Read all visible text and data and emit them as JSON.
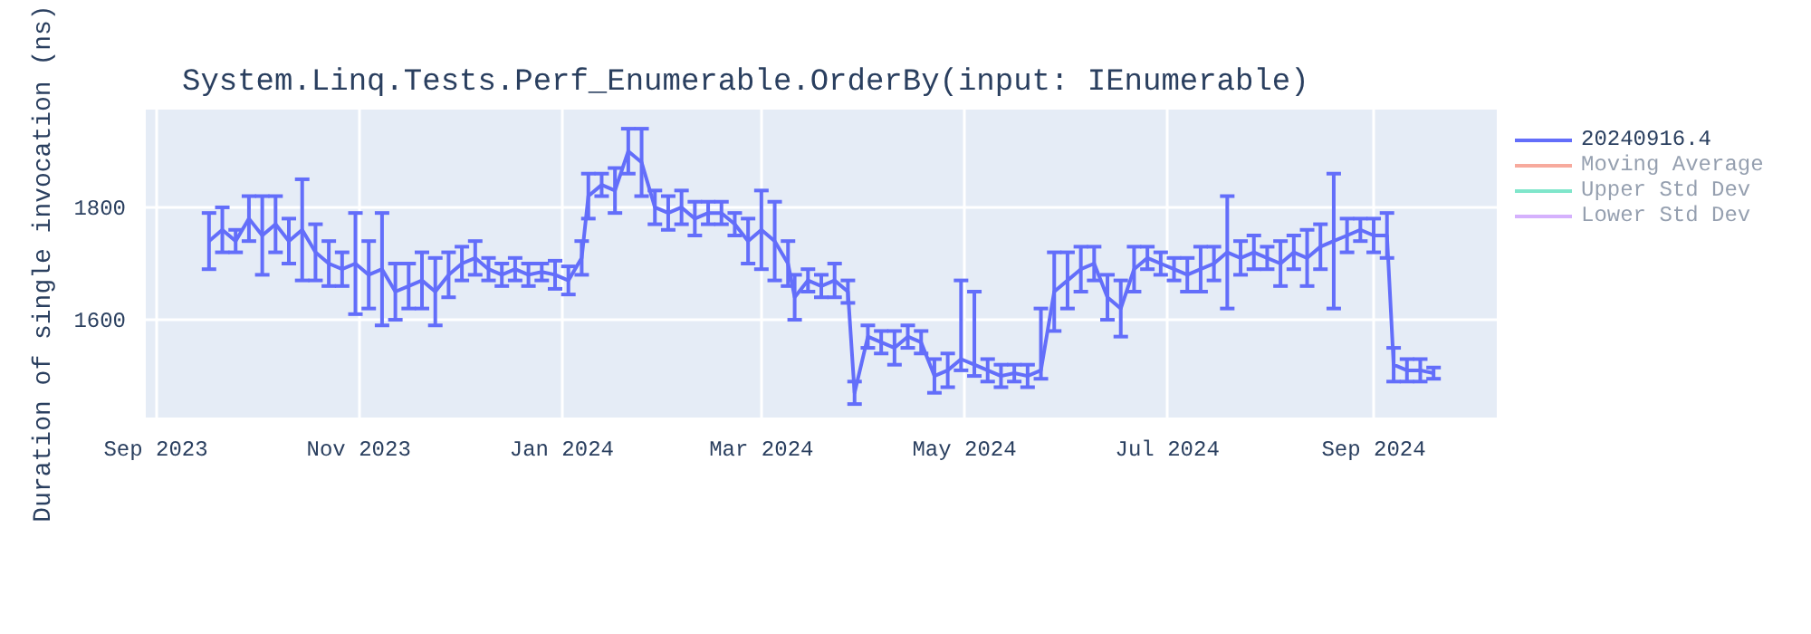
{
  "chart_data": {
    "type": "line",
    "title": "System.Linq.Tests.Perf_Enumerable.OrderBy(input: IEnumerable)",
    "ylabel": "Duration of single invocation (ns)",
    "x": [
      "2023-09-17",
      "2023-09-21",
      "2023-09-25",
      "2023-09-29",
      "2023-10-03",
      "2023-10-07",
      "2023-10-11",
      "2023-10-15",
      "2023-10-19",
      "2023-10-23",
      "2023-10-27",
      "2023-10-31",
      "2023-11-04",
      "2023-11-08",
      "2023-11-12",
      "2023-11-16",
      "2023-11-20",
      "2023-11-24",
      "2023-11-28",
      "2023-12-02",
      "2023-12-06",
      "2023-12-10",
      "2023-12-14",
      "2023-12-18",
      "2023-12-22",
      "2023-12-26",
      "2023-12-30",
      "2024-01-03",
      "2024-01-07",
      "2024-01-09",
      "2024-01-13",
      "2024-01-17",
      "2024-01-21",
      "2024-01-25",
      "2024-01-29",
      "2024-02-02",
      "2024-02-06",
      "2024-02-10",
      "2024-02-14",
      "2024-02-18",
      "2024-02-22",
      "2024-02-26",
      "2024-03-01",
      "2024-03-05",
      "2024-03-09",
      "2024-03-11",
      "2024-03-15",
      "2024-03-19",
      "2024-03-23",
      "2024-03-27",
      "2024-03-29",
      "2024-04-02",
      "2024-04-06",
      "2024-04-10",
      "2024-04-14",
      "2024-04-18",
      "2024-04-22",
      "2024-04-26",
      "2024-04-30",
      "2024-05-04",
      "2024-05-08",
      "2024-05-12",
      "2024-05-16",
      "2024-05-20",
      "2024-05-24",
      "2024-05-28",
      "2024-06-01",
      "2024-06-05",
      "2024-06-09",
      "2024-06-13",
      "2024-06-17",
      "2024-06-21",
      "2024-06-25",
      "2024-06-29",
      "2024-07-03",
      "2024-07-07",
      "2024-07-11",
      "2024-07-15",
      "2024-07-19",
      "2024-07-23",
      "2024-07-27",
      "2024-07-31",
      "2024-08-04",
      "2024-08-08",
      "2024-08-12",
      "2024-08-16",
      "2024-08-20",
      "2024-08-24",
      "2024-08-28",
      "2024-09-01",
      "2024-09-05",
      "2024-09-07",
      "2024-09-11",
      "2024-09-15",
      "2024-09-19"
    ],
    "series": [
      {
        "name": "20240916.4",
        "color": "#636efa",
        "values": [
          1740,
          1760,
          1740,
          1780,
          1750,
          1770,
          1740,
          1760,
          1720,
          1700,
          1690,
          1700,
          1680,
          1690,
          1650,
          1660,
          1670,
          1650,
          1680,
          1700,
          1710,
          1690,
          1680,
          1690,
          1680,
          1685,
          1680,
          1670,
          1710,
          1820,
          1840,
          1830,
          1900,
          1880,
          1800,
          1790,
          1800,
          1780,
          1790,
          1790,
          1770,
          1740,
          1760,
          1740,
          1700,
          1640,
          1670,
          1660,
          1670,
          1650,
          1470,
          1570,
          1560,
          1550,
          1570,
          1560,
          1500,
          1510,
          1530,
          1520,
          1510,
          1500,
          1505,
          1500,
          1510,
          1650,
          1670,
          1690,
          1700,
          1640,
          1620,
          1690,
          1710,
          1700,
          1690,
          1680,
          1690,
          1700,
          1720,
          1710,
          1720,
          1710,
          1700,
          1720,
          1710,
          1730,
          1740,
          1750,
          1760,
          1750,
          1750,
          1520,
          1510,
          1510,
          1505
        ],
        "errors": [
          50,
          40,
          20,
          40,
          70,
          50,
          40,
          90,
          50,
          40,
          30,
          90,
          60,
          100,
          50,
          40,
          50,
          60,
          40,
          30,
          30,
          20,
          20,
          20,
          20,
          15,
          25,
          25,
          30,
          40,
          20,
          40,
          40,
          60,
          30,
          30,
          30,
          30,
          20,
          20,
          20,
          40,
          70,
          70,
          40,
          40,
          20,
          20,
          30,
          20,
          20,
          20,
          20,
          30,
          20,
          20,
          30,
          30,
          [
            1510,
            1670
          ],
          [
            1500,
            1650
          ],
          20,
          20,
          15,
          20,
          [
            1495,
            1620
          ],
          70,
          50,
          40,
          30,
          40,
          50,
          40,
          20,
          20,
          20,
          30,
          40,
          30,
          100,
          30,
          30,
          20,
          40,
          30,
          50,
          40,
          120,
          30,
          20,
          30,
          40,
          30,
          20,
          20,
          10
        ]
      },
      {
        "name": "Moving Average",
        "color": "#ef553b",
        "values": [
          null,
          null,
          null,
          null,
          null,
          null,
          null,
          null,
          null,
          null,
          null,
          null,
          null,
          null,
          null,
          null,
          null,
          null,
          null,
          null,
          null,
          null,
          null,
          null,
          null,
          null,
          null,
          null,
          null,
          null,
          null,
          null,
          null,
          null,
          null,
          null,
          null,
          null,
          null,
          null,
          null,
          null,
          null,
          null,
          null,
          null,
          null,
          null,
          null,
          null,
          null,
          null,
          null,
          null,
          null,
          null,
          null,
          null,
          null,
          null,
          null,
          null,
          null,
          null,
          null,
          null,
          null,
          null,
          null,
          null,
          null,
          null,
          null,
          null,
          null,
          null,
          null,
          null,
          null,
          null,
          null,
          null,
          null,
          null,
          null,
          null,
          null,
          null,
          null,
          null,
          null,
          null,
          null,
          null,
          null
        ]
      },
      {
        "name": "Upper Std Dev",
        "color": "#00cc96",
        "values": [
          null,
          null,
          null,
          null,
          null,
          null,
          null,
          null,
          null,
          null,
          null,
          null,
          null,
          null,
          null,
          null,
          null,
          null,
          null,
          null,
          null,
          null,
          null,
          null,
          null,
          null,
          null,
          null,
          null,
          null,
          null,
          null,
          null,
          null,
          null,
          null,
          null,
          null,
          null,
          null,
          null,
          null,
          null,
          null,
          null,
          null,
          null,
          null,
          null,
          null,
          null,
          null,
          null,
          null,
          null,
          null,
          null,
          null,
          null,
          null,
          null,
          null,
          null,
          null,
          null,
          null,
          null,
          null,
          null,
          null,
          null,
          null,
          null,
          null,
          null,
          null,
          null,
          null,
          null,
          null,
          null,
          null,
          null,
          null,
          null,
          null,
          null,
          null,
          null,
          null,
          null,
          null,
          null,
          null,
          null
        ]
      },
      {
        "name": "Lower Std Dev",
        "color": "#ab63fa",
        "values": [
          null,
          null,
          null,
          null,
          null,
          null,
          null,
          null,
          null,
          null,
          null,
          null,
          null,
          null,
          null,
          null,
          null,
          null,
          null,
          null,
          null,
          null,
          null,
          null,
          null,
          null,
          null,
          null,
          null,
          null,
          null,
          null,
          null,
          null,
          null,
          null,
          null,
          null,
          null,
          null,
          null,
          null,
          null,
          null,
          null,
          null,
          null,
          null,
          null,
          null,
          null,
          null,
          null,
          null,
          null,
          null,
          null,
          null,
          null,
          null,
          null,
          null,
          null,
          null,
          null,
          null,
          null,
          null,
          null,
          null,
          null,
          null,
          null,
          null,
          null,
          null,
          null,
          null,
          null,
          null,
          null,
          null,
          null,
          null,
          null,
          null,
          null,
          null,
          null,
          null,
          null,
          null,
          null,
          null,
          null
        ]
      }
    ],
    "xlim": [
      "2023-08-29",
      "2024-10-08"
    ],
    "xticks": [
      {
        "value": "2023-09-01",
        "label": "Sep 2023"
      },
      {
        "value": "2023-11-01",
        "label": "Nov 2023"
      },
      {
        "value": "2024-01-01",
        "label": "Jan 2024"
      },
      {
        "value": "2024-03-01",
        "label": "Mar 2024"
      },
      {
        "value": "2024-05-01",
        "label": "May 2024"
      },
      {
        "value": "2024-07-01",
        "label": "Jul 2024"
      },
      {
        "value": "2024-09-01",
        "label": "Sep 2024"
      }
    ],
    "ylim": [
      1426,
      1974
    ],
    "yticks": [
      1600,
      1800
    ],
    "grid": true,
    "legend": "right",
    "line_style": "solid"
  }
}
